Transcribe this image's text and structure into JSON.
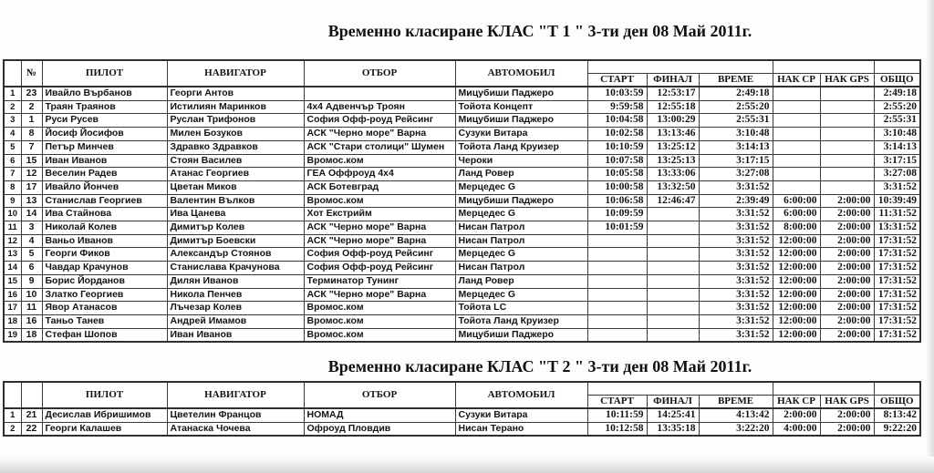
{
  "tables": [
    {
      "title": "Временно класиране КЛАС \"Т 1 \" 3-ти  ден 08 Май 2011г.",
      "columns": [
        "",
        "№",
        "ПИЛОТ",
        "НАВИГАТОР",
        "ОТБОР",
        "АВТОМОБИЛ",
        "СТАРТ",
        "ФИНАЛ",
        "ВРЕМЕ",
        "НАК СР",
        "НАК GPS",
        "ОБЩО"
      ],
      "rows": [
        [
          "1",
          "23",
          "Ивайло Върбанов",
          "Георги Антов",
          "",
          "Мицубиши Паджеро",
          "10:03:59",
          "12:53:17",
          "2:49:18",
          "",
          "",
          "2:49:18"
        ],
        [
          "2",
          "2",
          "Траян Траянов",
          "Истилиян Маринков",
          "4x4 Адвенчър Троян",
          "Тойота Концепт",
          "9:59:58",
          "12:55:18",
          "2:55:20",
          "",
          "",
          "2:55:20"
        ],
        [
          "3",
          "1",
          "Руси Русев",
          "Руслан Трифонов",
          "София Офф-роуд Рейсинг",
          "Мицубиши Паджеро",
          "10:04:58",
          "13:00:29",
          "2:55:31",
          "",
          "",
          "2:55:31"
        ],
        [
          "4",
          "8",
          "Йосиф Йосифов",
          "Милен Бозуков",
          "АСК \"Черно море\" Варна",
          "Сузуки Витара",
          "10:02:58",
          "13:13:46",
          "3:10:48",
          "",
          "",
          "3:10:48"
        ],
        [
          "5",
          "7",
          "Петър Минчев",
          "Здравко Здравков",
          "АСК \"Стари столици\" Шумен",
          "Тойота Ланд Круизер",
          "10:10:59",
          "13:25:12",
          "3:14:13",
          "",
          "",
          "3:14:13"
        ],
        [
          "6",
          "15",
          "Иван Иванов",
          "Стоян Василев",
          "Вромос.ком",
          "Чероки",
          "10:07:58",
          "13:25:13",
          "3:17:15",
          "",
          "",
          "3:17:15"
        ],
        [
          "7",
          "12",
          "Веселин Радев",
          "Атанас Георгиев",
          "ГЕА Оффроуд 4x4",
          "Ланд Ровер",
          "10:05:58",
          "13:33:06",
          "3:27:08",
          "",
          "",
          "3:27:08"
        ],
        [
          "8",
          "17",
          "Ивайло Йончев",
          "Цветан Миков",
          "АСК Ботевград",
          "Мерцедес G",
          "10:00:58",
          "13:32:50",
          "3:31:52",
          "",
          "",
          "3:31:52"
        ],
        [
          "9",
          "13",
          "Станислав Георгиев",
          "Валентин Вълков",
          "Вромос.ком",
          "Мицубиши Паджеро",
          "10:06:58",
          "12:46:47",
          "2:39:49",
          "6:00:00",
          "2:00:00",
          "10:39:49"
        ],
        [
          "10",
          "14",
          "Ива Стайнова",
          "Ива Цанева",
          "Хот Екстрийм",
          "Мерцедес G",
          "10:09:59",
          "",
          "3:31:52",
          "6:00:00",
          "2:00:00",
          "11:31:52"
        ],
        [
          "11",
          "3",
          "Николай Колев",
          "Димитър Колев",
          "АСК \"Черно море\" Варна",
          "Нисан Патрол",
          "10:01:59",
          "",
          "3:31:52",
          "8:00:00",
          "2:00:00",
          "13:31:52"
        ],
        [
          "12",
          "4",
          "Ваньо Иванов",
          "Димитър Боевски",
          "АСК \"Черно море\" Варна",
          "Нисан Патрол",
          "",
          "",
          "3:31:52",
          "12:00:00",
          "2:00:00",
          "17:31:52"
        ],
        [
          "13",
          "5",
          "Георги Фиков",
          "Александър Стоянов",
          "София Офф-роуд Рейсинг",
          "Мерцедес G",
          "",
          "",
          "3:31:52",
          "12:00:00",
          "2:00:00",
          "17:31:52"
        ],
        [
          "14",
          "6",
          "Чавдар Крачунов",
          "Станислава Крачунова",
          "София Офф-роуд Рейсинг",
          "Нисан Патрол",
          "",
          "",
          "3:31:52",
          "12:00:00",
          "2:00:00",
          "17:31:52"
        ],
        [
          "15",
          "9",
          "Борис Йорданов",
          "Дилян Иванов",
          "Терминатор Тунинг",
          "Ланд Ровер",
          "",
          "",
          "3:31:52",
          "12:00:00",
          "2:00:00",
          "17:31:52"
        ],
        [
          "16",
          "10",
          "Златко Георгиев",
          "Никола Пенчев",
          "АСК \"Черно море\" Варна",
          "Мерцедес G",
          "",
          "",
          "3:31:52",
          "12:00:00",
          "2:00:00",
          "17:31:52"
        ],
        [
          "17",
          "11",
          "Явор Атанасов",
          "Лъчезар Колев",
          "Вромос.ком",
          "Тойота LC",
          "",
          "",
          "3:31:52",
          "12:00:00",
          "2:00:00",
          "17:31:52"
        ],
        [
          "18",
          "16",
          "Таньо Танев",
          "Андрей Имамов",
          "Вромос.ком",
          "Тойота Ланд Круизер",
          "",
          "",
          "3:31:52",
          "12:00:00",
          "2:00:00",
          "17:31:52"
        ],
        [
          "19",
          "18",
          "Стефан Шопов",
          "Иван Иванов",
          "Вромос.ком",
          "Мицубиши Паджеро",
          "",
          "",
          "3:31:52",
          "12:00:00",
          "2:00:00",
          "17:31:52"
        ]
      ]
    },
    {
      "title": "Временно класиране КЛАС \"Т 2 \" 3-ти ден 08 Май 2011г.",
      "columns": [
        "",
        "",
        "ПИЛОТ",
        "НАВИГАТОР",
        "ОТБОР",
        "АВТОМОБИЛ",
        "СТАРТ",
        "ФИНАЛ",
        "ВРЕМЕ",
        "НАК СР",
        "НАК GPS",
        "ОБЩО"
      ],
      "rows": [
        [
          "1",
          "21",
          "Десислав Ибришимов",
          "Цветелин Францов",
          "НОМАД",
          "Сузуки Витара",
          "10:11:59",
          "14:25:41",
          "4:13:42",
          "2:00:00",
          "2:00:00",
          "8:13:42"
        ],
        [
          "2",
          "22",
          "Георги Калашев",
          "Атанаска Чочева",
          "Офроуд Пловдив",
          "Нисан Терано",
          "10:12:58",
          "13:35:18",
          "3:22:20",
          "4:00:00",
          "2:00:00",
          "9:22:20"
        ]
      ]
    }
  ],
  "column_keys": [
    "pos",
    "num",
    "pilot",
    "navigator",
    "team",
    "car",
    "start",
    "finish",
    "time",
    "pen-ss",
    "pen-gps",
    "total"
  ]
}
